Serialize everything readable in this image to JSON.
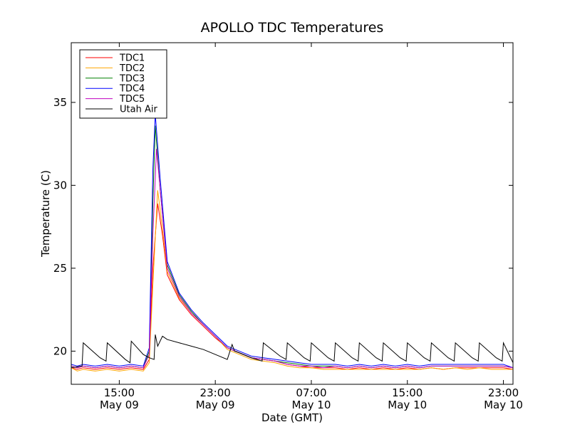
{
  "chart_data": {
    "type": "line",
    "title": "APOLLO TDC Temperatures",
    "xlabel": "Date (GMT)",
    "ylabel": "Temperature (C)",
    "x_unit": "hours since May 09 00:00 GMT",
    "xlim": [
      11,
      47.8
    ],
    "ylim": [
      18,
      38.6
    ],
    "grid": false,
    "legend_position": "top-left",
    "x_ticks": [
      {
        "value": 15,
        "time": "15:00",
        "date": "May 09"
      },
      {
        "value": 23,
        "time": "23:00",
        "date": "May 09"
      },
      {
        "value": 31,
        "time": "07:00",
        "date": "May 10"
      },
      {
        "value": 39,
        "time": "15:00",
        "date": "May 10"
      },
      {
        "value": 47,
        "time": "23:00",
        "date": "May 10"
      }
    ],
    "y_ticks": [
      {
        "value": 20,
        "label": "20"
      },
      {
        "value": 25,
        "label": "25"
      },
      {
        "value": 30,
        "label": "30"
      },
      {
        "value": 35,
        "label": "35"
      }
    ],
    "series": [
      {
        "name": "TDC1",
        "color": "#ff0000",
        "points": [
          [
            11,
            19.0
          ],
          [
            11.5,
            18.9
          ],
          [
            12,
            19.0
          ],
          [
            13,
            18.9
          ],
          [
            14,
            19.0
          ],
          [
            15,
            18.9
          ],
          [
            16,
            19.0
          ],
          [
            17,
            18.9
          ],
          [
            17.5,
            19.5
          ],
          [
            17.8,
            25.0
          ],
          [
            18.2,
            28.9
          ],
          [
            18.6,
            27.0
          ],
          [
            19.0,
            24.6
          ],
          [
            20,
            23.1
          ],
          [
            21,
            22.2
          ],
          [
            22,
            21.5
          ],
          [
            23,
            20.8
          ],
          [
            24,
            20.2
          ],
          [
            25,
            19.9
          ],
          [
            26,
            19.6
          ],
          [
            27,
            19.5
          ],
          [
            28,
            19.4
          ],
          [
            29,
            19.2
          ],
          [
            30,
            19.1
          ],
          [
            31,
            19.0
          ],
          [
            32,
            19.0
          ],
          [
            33,
            19.0
          ],
          [
            34,
            18.9
          ],
          [
            35,
            19.0
          ],
          [
            36,
            18.9
          ],
          [
            37,
            19.0
          ],
          [
            38,
            18.9
          ],
          [
            39,
            19.0
          ],
          [
            40,
            18.9
          ],
          [
            41,
            19.0
          ],
          [
            42,
            18.9
          ],
          [
            43,
            19.0
          ],
          [
            44,
            19.0
          ],
          [
            45,
            19.0
          ],
          [
            46,
            19.0
          ],
          [
            47,
            19.0
          ],
          [
            47.8,
            18.9
          ]
        ]
      },
      {
        "name": "TDC2",
        "color": "#ffa500",
        "points": [
          [
            11,
            19.0
          ],
          [
            11.5,
            18.8
          ],
          [
            12,
            18.9
          ],
          [
            13,
            18.8
          ],
          [
            14,
            18.9
          ],
          [
            15,
            18.8
          ],
          [
            16,
            18.9
          ],
          [
            17,
            18.8
          ],
          [
            17.5,
            19.3
          ],
          [
            17.8,
            24.0
          ],
          [
            18.2,
            29.7
          ],
          [
            18.6,
            27.4
          ],
          [
            19.0,
            24.8
          ],
          [
            20,
            23.2
          ],
          [
            21,
            22.3
          ],
          [
            22,
            21.6
          ],
          [
            23,
            20.9
          ],
          [
            24,
            20.1
          ],
          [
            25,
            19.8
          ],
          [
            26,
            19.5
          ],
          [
            27,
            19.4
          ],
          [
            28,
            19.3
          ],
          [
            29,
            19.1
          ],
          [
            30,
            19.0
          ],
          [
            31,
            19.0
          ],
          [
            32,
            18.9
          ],
          [
            33,
            18.9
          ],
          [
            34,
            18.9
          ],
          [
            35,
            18.9
          ],
          [
            36,
            18.9
          ],
          [
            37,
            18.9
          ],
          [
            38,
            18.9
          ],
          [
            39,
            18.9
          ],
          [
            40,
            18.9
          ],
          [
            41,
            19.0
          ],
          [
            42,
            18.9
          ],
          [
            43,
            19.0
          ],
          [
            44,
            18.9
          ],
          [
            45,
            19.0
          ],
          [
            46,
            18.9
          ],
          [
            47,
            18.9
          ],
          [
            47.8,
            18.9
          ]
        ]
      },
      {
        "name": "TDC3",
        "color": "#008000",
        "points": [
          [
            11,
            19.1
          ],
          [
            11.5,
            19.0
          ],
          [
            12,
            19.1
          ],
          [
            13,
            19.0
          ],
          [
            14,
            19.1
          ],
          [
            15,
            19.0
          ],
          [
            16,
            19.1
          ],
          [
            17,
            19.0
          ],
          [
            17.5,
            20.0
          ],
          [
            17.8,
            29.0
          ],
          [
            18.0,
            33.6
          ],
          [
            18.4,
            29.8
          ],
          [
            19.0,
            25.2
          ],
          [
            20,
            23.4
          ],
          [
            21,
            22.4
          ],
          [
            22,
            21.6
          ],
          [
            23,
            20.9
          ],
          [
            24,
            20.2
          ],
          [
            25,
            19.9
          ],
          [
            26,
            19.6
          ],
          [
            27,
            19.5
          ],
          [
            28,
            19.4
          ],
          [
            29,
            19.3
          ],
          [
            30,
            19.2
          ],
          [
            31,
            19.1
          ],
          [
            32,
            19.1
          ],
          [
            33,
            19.1
          ],
          [
            34,
            19.0
          ],
          [
            35,
            19.1
          ],
          [
            36,
            19.0
          ],
          [
            37,
            19.1
          ],
          [
            38,
            19.0
          ],
          [
            39,
            19.1
          ],
          [
            40,
            19.0
          ],
          [
            41,
            19.1
          ],
          [
            42,
            19.1
          ],
          [
            43,
            19.1
          ],
          [
            44,
            19.1
          ],
          [
            45,
            19.1
          ],
          [
            46,
            19.1
          ],
          [
            47,
            19.1
          ],
          [
            47.8,
            19.0
          ]
        ]
      },
      {
        "name": "TDC4",
        "color": "#0000ff",
        "points": [
          [
            11,
            19.2
          ],
          [
            11.5,
            19.1
          ],
          [
            12,
            19.2
          ],
          [
            13,
            19.1
          ],
          [
            14,
            19.2
          ],
          [
            15,
            19.1
          ],
          [
            16,
            19.2
          ],
          [
            17,
            19.1
          ],
          [
            17.5,
            20.2
          ],
          [
            17.8,
            31.0
          ],
          [
            18.0,
            34.3
          ],
          [
            18.4,
            30.5
          ],
          [
            19.0,
            25.4
          ],
          [
            20,
            23.5
          ],
          [
            21,
            22.5
          ],
          [
            22,
            21.7
          ],
          [
            23,
            21.0
          ],
          [
            24,
            20.3
          ],
          [
            25,
            20.0
          ],
          [
            26,
            19.7
          ],
          [
            27,
            19.6
          ],
          [
            28,
            19.5
          ],
          [
            29,
            19.4
          ],
          [
            30,
            19.3
          ],
          [
            31,
            19.2
          ],
          [
            32,
            19.2
          ],
          [
            33,
            19.2
          ],
          [
            34,
            19.1
          ],
          [
            35,
            19.2
          ],
          [
            36,
            19.1
          ],
          [
            37,
            19.2
          ],
          [
            38,
            19.1
          ],
          [
            39,
            19.2
          ],
          [
            40,
            19.1
          ],
          [
            41,
            19.2
          ],
          [
            42,
            19.2
          ],
          [
            43,
            19.2
          ],
          [
            44,
            19.2
          ],
          [
            45,
            19.2
          ],
          [
            46,
            19.2
          ],
          [
            47,
            19.2
          ],
          [
            47.8,
            19.0
          ]
        ]
      },
      {
        "name": "TDC5",
        "color": "#bf00bf",
        "points": [
          [
            11,
            19.1
          ],
          [
            11.5,
            19.0
          ],
          [
            12,
            19.1
          ],
          [
            13,
            19.0
          ],
          [
            14,
            19.1
          ],
          [
            15,
            19.0
          ],
          [
            16,
            19.1
          ],
          [
            17,
            19.0
          ],
          [
            17.5,
            19.8
          ],
          [
            17.8,
            27.0
          ],
          [
            18.1,
            32.2
          ],
          [
            18.5,
            29.0
          ],
          [
            19.0,
            25.0
          ],
          [
            20,
            23.3
          ],
          [
            21,
            22.3
          ],
          [
            22,
            21.6
          ],
          [
            23,
            20.9
          ],
          [
            24,
            20.2
          ],
          [
            25,
            19.9
          ],
          [
            26,
            19.6
          ],
          [
            27,
            19.5
          ],
          [
            28,
            19.4
          ],
          [
            29,
            19.2
          ],
          [
            30,
            19.1
          ],
          [
            31,
            19.1
          ],
          [
            32,
            19.0
          ],
          [
            33,
            19.1
          ],
          [
            34,
            19.0
          ],
          [
            35,
            19.1
          ],
          [
            36,
            19.0
          ],
          [
            37,
            19.1
          ],
          [
            38,
            19.0
          ],
          [
            39,
            19.1
          ],
          [
            40,
            19.0
          ],
          [
            41,
            19.1
          ],
          [
            42,
            19.1
          ],
          [
            43,
            19.1
          ],
          [
            44,
            19.1
          ],
          [
            45,
            19.1
          ],
          [
            46,
            19.1
          ],
          [
            47,
            19.1
          ],
          [
            47.8,
            19.0
          ]
        ]
      },
      {
        "name": "Utah Air",
        "color": "#000000",
        "points": [
          [
            11,
            19.0
          ],
          [
            11.9,
            19.1
          ],
          [
            12.0,
            20.5
          ],
          [
            13.4,
            19.6
          ],
          [
            13.9,
            19.4
          ],
          [
            14.0,
            20.5
          ],
          [
            15.5,
            19.5
          ],
          [
            15.9,
            19.3
          ],
          [
            16.0,
            20.6
          ],
          [
            17.0,
            19.8
          ],
          [
            17.5,
            19.6
          ],
          [
            17.9,
            19.5
          ],
          [
            18.0,
            21.0
          ],
          [
            18.2,
            20.3
          ],
          [
            18.6,
            20.9
          ],
          [
            19.0,
            20.7
          ],
          [
            20,
            20.5
          ],
          [
            21,
            20.3
          ],
          [
            22,
            20.1
          ],
          [
            23,
            19.8
          ],
          [
            24,
            19.5
          ],
          [
            24.4,
            20.4
          ],
          [
            24.6,
            20.0
          ],
          [
            25,
            19.9
          ],
          [
            26,
            19.6
          ],
          [
            26.9,
            19.4
          ],
          [
            27.0,
            20.5
          ],
          [
            28.4,
            19.7
          ],
          [
            28.9,
            19.5
          ],
          [
            29.0,
            20.5
          ],
          [
            30.4,
            19.6
          ],
          [
            30.9,
            19.4
          ],
          [
            31.0,
            20.5
          ],
          [
            32.4,
            19.6
          ],
          [
            32.9,
            19.4
          ],
          [
            33.0,
            20.5
          ],
          [
            34.4,
            19.6
          ],
          [
            34.9,
            19.4
          ],
          [
            35.0,
            20.5
          ],
          [
            36.4,
            19.6
          ],
          [
            36.9,
            19.4
          ],
          [
            37.0,
            20.5
          ],
          [
            38.4,
            19.6
          ],
          [
            38.9,
            19.4
          ],
          [
            39.0,
            20.5
          ],
          [
            40.4,
            19.6
          ],
          [
            40.9,
            19.4
          ],
          [
            41.0,
            20.5
          ],
          [
            42.4,
            19.6
          ],
          [
            42.9,
            19.4
          ],
          [
            43.0,
            20.5
          ],
          [
            44.4,
            19.6
          ],
          [
            44.9,
            19.4
          ],
          [
            45.0,
            20.5
          ],
          [
            46.4,
            19.6
          ],
          [
            46.9,
            19.4
          ],
          [
            47.0,
            20.5
          ],
          [
            47.8,
            19.3
          ]
        ]
      }
    ]
  }
}
